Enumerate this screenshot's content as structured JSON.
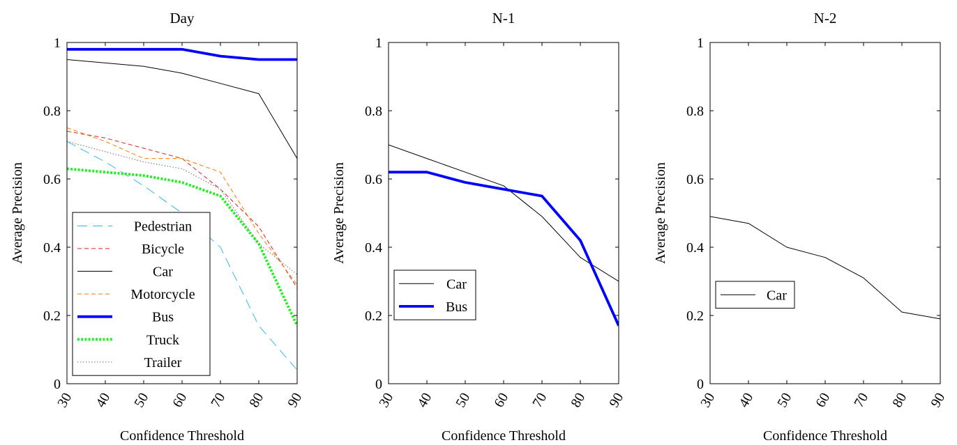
{
  "chart_data": [
    {
      "type": "line",
      "title": "Day",
      "xlabel": "Confidence Threshold",
      "ylabel": "Average Precision",
      "x": [
        30,
        40,
        50,
        60,
        70,
        80,
        90
      ],
      "xlim": [
        30,
        90
      ],
      "ylim": [
        0,
        1
      ],
      "yticks": [
        "0",
        "0.2",
        "0.4",
        "0.6",
        "0.8",
        "1"
      ],
      "xticks": [
        "30",
        "40",
        "50",
        "60",
        "70",
        "80",
        "90"
      ],
      "legend_position": "bottom-left",
      "series": [
        {
          "name": "Pedestrian",
          "color": "#00aaee",
          "dash": "long-dash",
          "values": [
            0.71,
            0.65,
            0.58,
            0.5,
            0.4,
            0.17,
            0.04
          ]
        },
        {
          "name": "Bicycle",
          "color": "#dd2222",
          "dash": "dashed",
          "values": [
            0.74,
            0.72,
            0.69,
            0.66,
            0.57,
            0.46,
            0.28
          ]
        },
        {
          "name": "Car",
          "color": "#000000",
          "dash": "solid",
          "values": [
            0.95,
            0.94,
            0.93,
            0.91,
            0.88,
            0.85,
            0.66
          ]
        },
        {
          "name": "Motorcycle",
          "color": "#ff7700",
          "dash": "dashed",
          "values": [
            0.75,
            0.71,
            0.66,
            0.66,
            0.62,
            0.44,
            0.29
          ]
        },
        {
          "name": "Bus",
          "color": "#0000ff",
          "dash": "thick-solid",
          "values": [
            0.98,
            0.98,
            0.98,
            0.98,
            0.96,
            0.95,
            0.95
          ]
        },
        {
          "name": "Truck",
          "color": "#22ee22",
          "dash": "thick-dotted",
          "values": [
            0.63,
            0.62,
            0.61,
            0.59,
            0.55,
            0.41,
            0.17
          ]
        },
        {
          "name": "Trailer",
          "color": "#888888",
          "dash": "dotted",
          "values": [
            0.71,
            0.68,
            0.65,
            0.63,
            0.57,
            0.41,
            0.32
          ]
        }
      ]
    },
    {
      "type": "line",
      "title": "N-1",
      "xlabel": "Confidence Threshold",
      "ylabel": "Average Precision",
      "x": [
        30,
        40,
        50,
        60,
        70,
        80,
        90
      ],
      "xlim": [
        30,
        90
      ],
      "ylim": [
        0,
        1
      ],
      "yticks": [
        "0",
        "0.2",
        "0.4",
        "0.6",
        "0.8",
        "1"
      ],
      "xticks": [
        "30",
        "40",
        "50",
        "60",
        "70",
        "80",
        "90"
      ],
      "legend_position": "bottom-left",
      "series": [
        {
          "name": "Car",
          "color": "#000000",
          "dash": "solid",
          "values": [
            0.7,
            0.66,
            0.62,
            0.58,
            0.49,
            0.37,
            0.3
          ]
        },
        {
          "name": "Bus",
          "color": "#0000ff",
          "dash": "thick-solid",
          "values": [
            0.62,
            0.62,
            0.59,
            0.57,
            0.55,
            0.42,
            0.17
          ]
        }
      ]
    },
    {
      "type": "line",
      "title": "N-2",
      "xlabel": "Confidence Threshold",
      "ylabel": "Average Precision",
      "x": [
        30,
        40,
        50,
        60,
        70,
        80,
        90
      ],
      "xlim": [
        30,
        90
      ],
      "ylim": [
        0,
        1
      ],
      "yticks": [
        "0",
        "0.2",
        "0.4",
        "0.6",
        "0.8",
        "1"
      ],
      "xticks": [
        "30",
        "40",
        "50",
        "60",
        "70",
        "80",
        "90"
      ],
      "legend_position": "bottom-left",
      "series": [
        {
          "name": "Car",
          "color": "#000000",
          "dash": "solid",
          "values": [
            0.49,
            0.47,
            0.4,
            0.37,
            0.31,
            0.21,
            0.19
          ]
        }
      ]
    }
  ]
}
